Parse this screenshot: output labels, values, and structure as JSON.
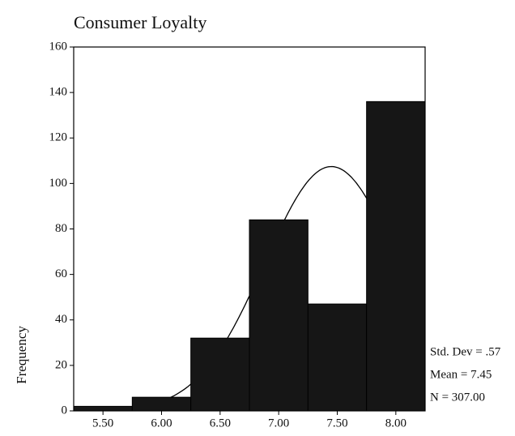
{
  "chart_data": {
    "type": "histogram",
    "title": "Consumer Loyalty",
    "y_label": "Frequency",
    "bins": [
      5.25,
      5.75,
      6.25,
      6.75,
      7.25,
      7.75,
      8.25
    ],
    "values": [
      2,
      6,
      32,
      84,
      47,
      136
    ],
    "color": "#161616",
    "xlim": [
      5.25,
      8.25
    ],
    "xticks": [
      {
        "value": 5.5,
        "label": "5.50"
      },
      {
        "value": 6,
        "label": "6.00"
      },
      {
        "value": 6.5,
        "label": "6.50"
      },
      {
        "value": 7,
        "label": "7.00"
      },
      {
        "value": 7.5,
        "label": "7.50"
      },
      {
        "value": 8,
        "label": "8.00"
      }
    ],
    "ylim": [
      0,
      160
    ],
    "yticks": [
      0,
      20,
      40,
      60,
      80,
      100,
      120,
      140,
      160
    ],
    "normal_curve": {
      "std_dev": 0.57,
      "mean": 7.45,
      "n": 307
    },
    "stats_labels": [
      "Std. Dev = .57",
      "Mean = 7.45",
      "N = 307.00"
    ]
  }
}
